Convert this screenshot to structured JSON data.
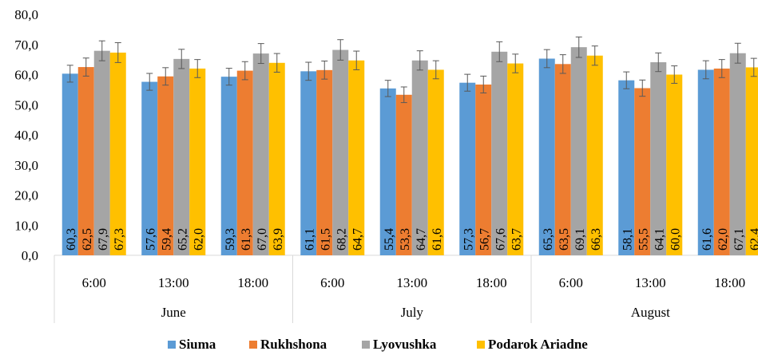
{
  "chart_data": {
    "type": "bar",
    "y_ticks": [
      "0,0",
      "10,0",
      "20,0",
      "30,0",
      "40,0",
      "50,0",
      "60,0",
      "70,0",
      "80,0"
    ],
    "ylim": [
      0,
      80
    ],
    "grid": false,
    "legend_position": "bottom",
    "groups": [
      {
        "label": "June",
        "categories": [
          "6:00",
          "13:00",
          "18:00"
        ]
      },
      {
        "label": "July",
        "categories": [
          "6:00",
          "13:00",
          "18:00"
        ]
      },
      {
        "label": "August",
        "categories": [
          "6:00",
          "13:00",
          "18:00"
        ]
      }
    ],
    "series": [
      {
        "name": "Siuma",
        "color": "#5B9BD5",
        "values": [
          60.3,
          57.6,
          59.3,
          61.1,
          55.4,
          57.3,
          65.3,
          58.1,
          61.6
        ],
        "labels": [
          "60,3",
          "57,6",
          "59,3",
          "61,1",
          "55,4",
          "57,3",
          "65,3",
          "58,1",
          "61,6"
        ],
        "errors": [
          2.8,
          2.8,
          2.8,
          3.0,
          2.7,
          2.8,
          3.0,
          2.8,
          3.0
        ]
      },
      {
        "name": "Rukhshona",
        "color": "#ED7D31",
        "values": [
          62.5,
          59.4,
          61.3,
          61.5,
          53.3,
          56.7,
          63.5,
          55.5,
          62.0
        ],
        "labels": [
          "62,5",
          "59,4",
          "61,3",
          "61,5",
          "53,3",
          "56,7",
          "63,5",
          "55,5",
          "62,0"
        ],
        "errors": [
          3.0,
          2.9,
          3.0,
          3.0,
          2.6,
          2.8,
          3.1,
          2.7,
          3.0
        ]
      },
      {
        "name": "Lyovushka",
        "color": "#A5A5A5",
        "values": [
          67.9,
          65.2,
          67.0,
          68.2,
          64.7,
          67.6,
          69.1,
          64.1,
          67.1
        ],
        "labels": [
          "67,9",
          "65,2",
          "67,0",
          "68,2",
          "64,7",
          "67,6",
          "69,1",
          "64,1",
          "67,1"
        ],
        "errors": [
          3.3,
          3.2,
          3.3,
          3.4,
          3.2,
          3.3,
          3.4,
          3.1,
          3.3
        ]
      },
      {
        "name": "Podarok Ariadne",
        "color": "#FFC000",
        "values": [
          67.3,
          62.0,
          63.9,
          64.7,
          61.6,
          63.7,
          66.3,
          60.0,
          62.4
        ],
        "labels": [
          "67,3",
          "62,0",
          "63,9",
          "64,7",
          "61,6",
          "63,7",
          "66,3",
          "60,0",
          "62,4"
        ],
        "errors": [
          3.3,
          3.0,
          3.1,
          3.1,
          3.0,
          3.1,
          3.2,
          2.9,
          3.0
        ]
      }
    ]
  }
}
